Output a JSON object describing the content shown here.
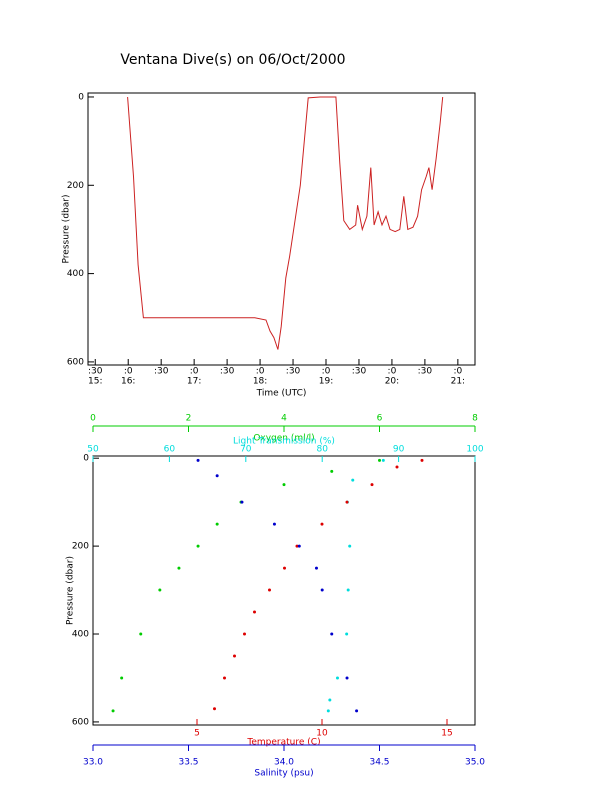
{
  "chart_data": [
    {
      "type": "line",
      "title": "Ventana Dive(s) on 06/Oct/2000",
      "xlabel": "Time (UTC)",
      "ylabel": "Pressure (dbar)",
      "xlim": [
        15.39,
        21.26
      ],
      "ylim": [
        607,
        -9
      ],
      "xticks": [
        {
          "value": 15.5,
          "label": ":30"
        },
        {
          "value": 16,
          "label": ":0"
        },
        {
          "value": 16.5,
          "label": ":30"
        },
        {
          "value": 17,
          "label": ":0"
        },
        {
          "value": 17.5,
          "label": ":30"
        },
        {
          "value": 18,
          "label": ":0"
        },
        {
          "value": 18.5,
          "label": ":30"
        },
        {
          "value": 19,
          "label": ":0"
        },
        {
          "value": 19.5,
          "label": ":30"
        },
        {
          "value": 20,
          "label": ":0"
        },
        {
          "value": 20.5,
          "label": ":30"
        },
        {
          "value": 21,
          "label": ":0"
        }
      ],
      "xticks_hours": [
        {
          "value": 15.5,
          "label": "15:"
        },
        {
          "value": 16,
          "label": "16:"
        },
        {
          "value": 17,
          "label": "17:"
        },
        {
          "value": 18,
          "label": "18:"
        },
        {
          "value": 19,
          "label": "19:"
        },
        {
          "value": 20,
          "label": "20:"
        },
        {
          "value": 21,
          "label": "21:"
        }
      ],
      "yticks": [
        0,
        200,
        400,
        600
      ],
      "color": "#cc2222",
      "x": [
        15.99,
        16.08,
        16.15,
        16.23,
        17.09,
        17.92,
        18.09,
        18.15,
        18.21,
        18.27,
        18.32,
        18.39,
        18.45,
        18.61,
        18.73,
        18.91,
        19.15,
        19.21,
        19.27,
        19.36,
        19.45,
        19.48,
        19.55,
        19.62,
        19.68,
        19.73,
        19.79,
        19.85,
        19.91,
        19.97,
        20.05,
        20.12,
        20.18,
        20.24,
        20.32,
        20.39,
        20.45,
        20.52,
        20.56,
        20.61,
        20.67,
        20.73,
        20.77
      ],
      "y": [
        0,
        180,
        380,
        500,
        500,
        500,
        505,
        530,
        545,
        572,
        520,
        410,
        360,
        200,
        2,
        0,
        0,
        150,
        280,
        300,
        290,
        245,
        300,
        270,
        160,
        290,
        260,
        290,
        270,
        300,
        305,
        300,
        225,
        300,
        295,
        270,
        210,
        180,
        160,
        210,
        140,
        60,
        0
      ]
    },
    {
      "type": "scatter",
      "ylabel": "Pressure (dbar)",
      "ylim": [
        607,
        -5
      ],
      "yticks": [
        0,
        200,
        400,
        600
      ],
      "x_axes": [
        {
          "label": "Oxygen (ml/l)",
          "color": "#00cc00",
          "side": "top",
          "lim": [
            0,
            8
          ],
          "ticks": [
            0,
            2,
            4,
            6,
            8
          ]
        },
        {
          "label": "Light Transmission (%)",
          "color": "#00dddd",
          "side": "top",
          "lim": [
            50,
            100
          ],
          "ticks": [
            50,
            60,
            70,
            80,
            90,
            100
          ]
        },
        {
          "label": "Temperature (C)",
          "color": "#dd0000",
          "side": "bottom",
          "lim": [
            0.84,
            16.12
          ],
          "ticks": [
            5,
            10,
            15
          ]
        },
        {
          "label": "Salinity (psu)",
          "color": "#0000cc",
          "side": "bottom",
          "lim": [
            33,
            35
          ],
          "ticks": [
            {
              "value": 33,
              "label": "33.0"
            },
            33.5,
            {
              "value": 34,
              "label": "34.0"
            },
            34.5,
            {
              "value": 35,
              "label": "35.0"
            }
          ]
        }
      ],
      "series": [
        {
          "color": "#00cc00",
          "x_axis": 0,
          "x": [
            6,
            5,
            4,
            3.1,
            2.6,
            2.2,
            1.8,
            1.4,
            1.0,
            0.6,
            0.42
          ],
          "y": [
            5,
            30,
            60,
            100,
            150,
            200,
            250,
            300,
            400,
            500,
            575
          ]
        },
        {
          "color": "#00dddd",
          "x_axis": 1,
          "x": [
            88,
            84,
            83.3,
            83.6,
            83.4,
            83.2,
            82,
            81,
            80.8
          ],
          "y": [
            5,
            50,
            100,
            200,
            300,
            400,
            500,
            550,
            575
          ]
        },
        {
          "color": "#dd0000",
          "x_axis": 2,
          "x": [
            14,
            13,
            12,
            11,
            10,
            9,
            8.5,
            7.9,
            7.3,
            6.9,
            6.5,
            6.1,
            5.7
          ],
          "y": [
            5,
            20,
            60,
            100,
            150,
            200,
            250,
            300,
            350,
            400,
            450,
            500,
            570
          ]
        },
        {
          "color": "#0000cc",
          "x_axis": 3,
          "x": [
            33.55,
            33.65,
            33.78,
            33.95,
            34.08,
            34.17,
            34.2,
            34.25,
            34.33,
            34.38
          ],
          "y": [
            5,
            40,
            100,
            150,
            200,
            250,
            300,
            400,
            500,
            575
          ]
        }
      ]
    }
  ]
}
